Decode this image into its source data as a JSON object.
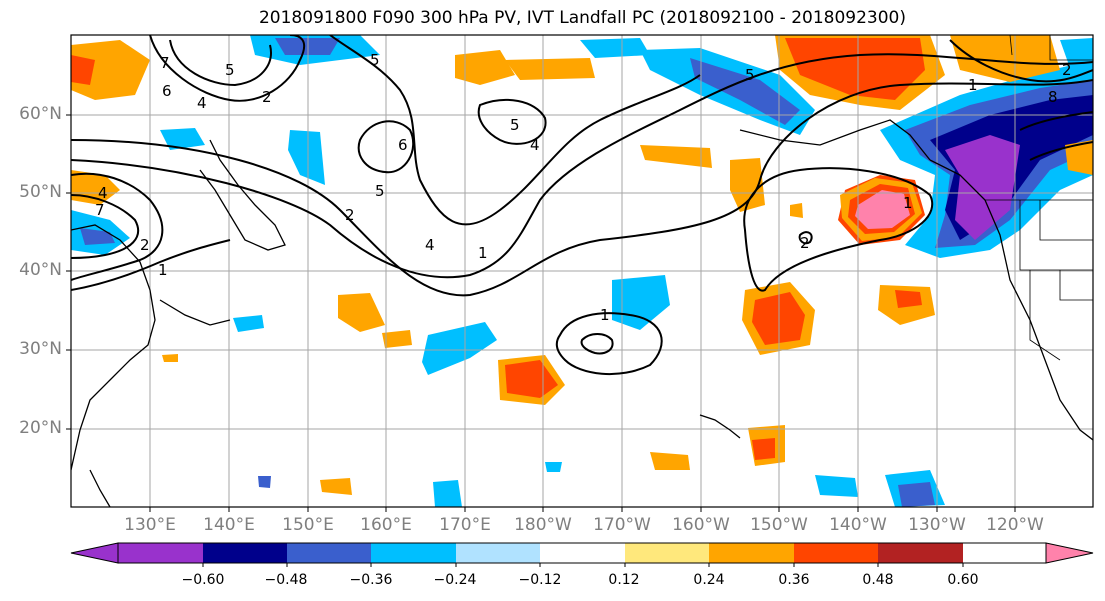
{
  "title": "2018091800 F090 300 hPa PV, IVT Landfall PC (2018092100 - 2018092300)",
  "map": {
    "lat_labels": [
      "60°N",
      "50°N",
      "40°N",
      "30°N",
      "20°N"
    ],
    "lon_labels": [
      "130°E",
      "140°E",
      "150°E",
      "160°E",
      "170°E",
      "180°W",
      "170°W",
      "160°W",
      "150°W",
      "140°W",
      "130°W",
      "120°W"
    ],
    "contour_labels": [
      "7",
      "6",
      "4",
      "5",
      "2",
      "5",
      "6",
      "5",
      "4",
      "5",
      "2",
      "1",
      "4",
      "1",
      "1",
      "2",
      "5",
      "1",
      "2",
      "8",
      "7",
      "4",
      "1",
      "2"
    ]
  },
  "colorbar": {
    "tick_labels": [
      "−0.60",
      "−0.48",
      "−0.36",
      "−0.24",
      "−0.12",
      "0.12",
      "0.24",
      "0.36",
      "0.48",
      "0.60"
    ],
    "colors": [
      "#9932cc",
      "#00008b",
      "#3a5fcd",
      "#00bfff",
      "#b0e2ff",
      "#ffffff",
      "#ffe87c",
      "#ffa500",
      "#ff4500",
      "#b22222",
      "#ff82ab"
    ]
  }
}
